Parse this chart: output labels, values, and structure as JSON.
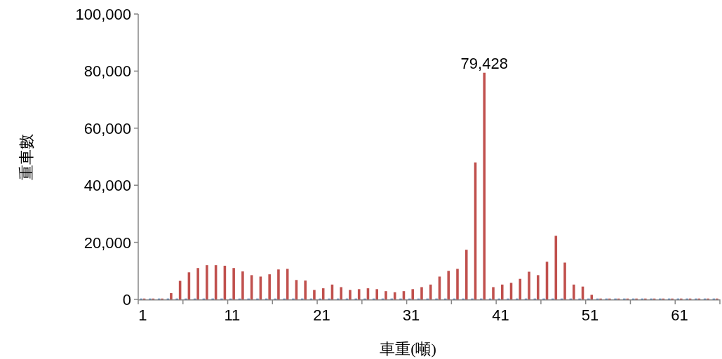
{
  "chart_data": {
    "type": "bar",
    "xlabel": "車重(噸)",
    "ylabel": "重車數",
    "categories": [
      "1",
      null,
      null,
      null,
      null,
      null,
      null,
      null,
      null,
      null,
      "11",
      null,
      null,
      null,
      null,
      null,
      null,
      null,
      null,
      null,
      "21",
      null,
      null,
      null,
      null,
      null,
      null,
      null,
      null,
      null,
      "31",
      null,
      null,
      null,
      null,
      null,
      null,
      null,
      null,
      null,
      "41",
      null,
      null,
      null,
      null,
      null,
      null,
      null,
      null,
      null,
      "51",
      null,
      null,
      null,
      null,
      null,
      null,
      null,
      null,
      null,
      "61",
      null,
      null,
      null,
      null
    ],
    "ylim": [
      0,
      100000
    ],
    "yticks": [
      {
        "value": 0,
        "label": "0"
      },
      {
        "value": 20000,
        "label": "20,000"
      },
      {
        "value": 40000,
        "label": "40,000"
      },
      {
        "value": 60000,
        "label": "60,000"
      },
      {
        "value": 80000,
        "label": "80,000"
      },
      {
        "value": 100000,
        "label": "100,000"
      }
    ],
    "series": [
      {
        "color": "#4f81bd",
        "values": [
          300,
          300,
          300,
          300,
          300,
          300,
          300,
          300,
          300,
          300,
          300,
          300,
          300,
          300,
          300,
          300,
          300,
          300,
          300,
          300,
          300,
          300,
          300,
          300,
          300,
          300,
          300,
          300,
          300,
          300,
          300,
          300,
          300,
          300,
          300,
          300,
          300,
          300,
          300,
          300,
          300,
          300,
          300,
          300,
          300,
          300,
          300,
          300,
          300,
          300,
          300,
          300,
          300,
          300,
          300,
          300,
          300,
          300,
          300,
          300,
          300,
          300,
          300,
          300,
          300
        ]
      },
      {
        "color": "#c0504d",
        "values": [
          300,
          300,
          300,
          2200,
          6500,
          9500,
          11000,
          12000,
          12000,
          11800,
          11000,
          9800,
          8500,
          8000,
          8800,
          10500,
          10700,
          6800,
          6600,
          3300,
          3900,
          5200,
          4300,
          3300,
          3600,
          3900,
          3600,
          2900,
          2500,
          2900,
          3600,
          4300,
          5200,
          8000,
          10000,
          10700,
          17400,
          48000,
          79428,
          4300,
          5200,
          5800,
          7200,
          9700,
          8500,
          13200,
          22300,
          12900,
          5200,
          4500,
          1600,
          300,
          300,
          300,
          300,
          300,
          300,
          300,
          300,
          300,
          300,
          300,
          300,
          300,
          300
        ],
        "value_labels": [
          null,
          null,
          null,
          null,
          null,
          null,
          null,
          null,
          null,
          null,
          null,
          null,
          null,
          null,
          null,
          null,
          null,
          null,
          null,
          null,
          null,
          null,
          null,
          null,
          null,
          null,
          null,
          null,
          null,
          null,
          null,
          null,
          null,
          null,
          null,
          null,
          null,
          null,
          "79,428",
          null,
          null,
          null,
          null,
          null,
          null,
          null,
          null,
          null,
          null,
          null,
          null,
          null,
          null,
          null,
          null,
          null,
          null,
          null,
          null,
          null,
          null,
          null,
          null,
          null,
          null
        ]
      }
    ],
    "grid": false
  }
}
